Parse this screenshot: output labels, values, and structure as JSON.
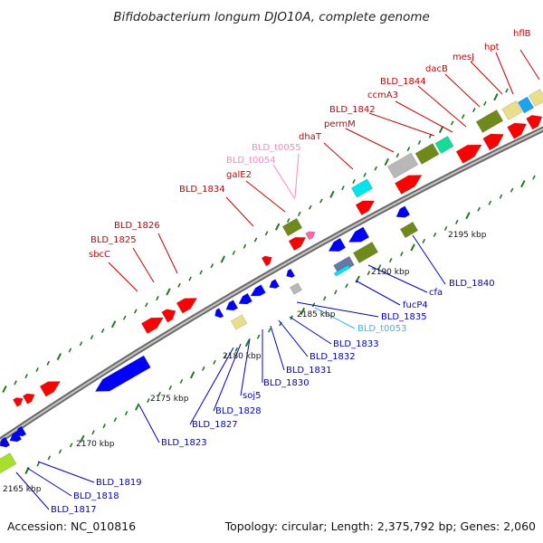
{
  "title": "Bifidobacterium longum DJO10A, complete genome",
  "accession": "Accession: NC_010816",
  "summary": "Topology: circular; Length: 2,375,792 bp; Genes: 2,060",
  "colors": {
    "backbone": "#7f7f7f",
    "forward_label": "#cc0000",
    "reverse_label": "#0000cc",
    "rna_label": "#ff88bb",
    "trna_label": "#33bbee",
    "tick": "#1e7a1e",
    "cds": "#ff0000",
    "cds_reverse": "#0000ff",
    "olive": "#708a1a",
    "teal": "#11dd99",
    "cyan": "#00e5ee",
    "khaki": "#e8df88",
    "lime": "#a6e02a",
    "gray": "#b8b8b8"
  },
  "scale_labels": [
    "2165 kbp",
    "2170 kbp",
    "2175 kbp",
    "2180 kbp",
    "2185 kbp",
    "2190 kbp",
    "2195 kbp"
  ],
  "forward_labels": [
    "hflB",
    "hpt",
    "mesJ",
    "dacB",
    "BLD_1844",
    "ccmA3",
    "BLD_1842",
    "permM",
    "dhaT",
    "BLD_t0055",
    "BLD_t0054",
    "galE2",
    "BLD_1834",
    "BLD_1826",
    "BLD_1825",
    "sbcC"
  ],
  "reverse_labels": [
    "BLD_1840",
    "cfa",
    "fucP4",
    "BLD_1835",
    "BLD_t0053",
    "BLD_1833",
    "BLD_1832",
    "BLD_1831",
    "BLD_1830",
    "soj5",
    "BLD_1828",
    "BLD_1827",
    "BLD_1823",
    "BLD_1819",
    "BLD_1818",
    "BLD_1817"
  ]
}
